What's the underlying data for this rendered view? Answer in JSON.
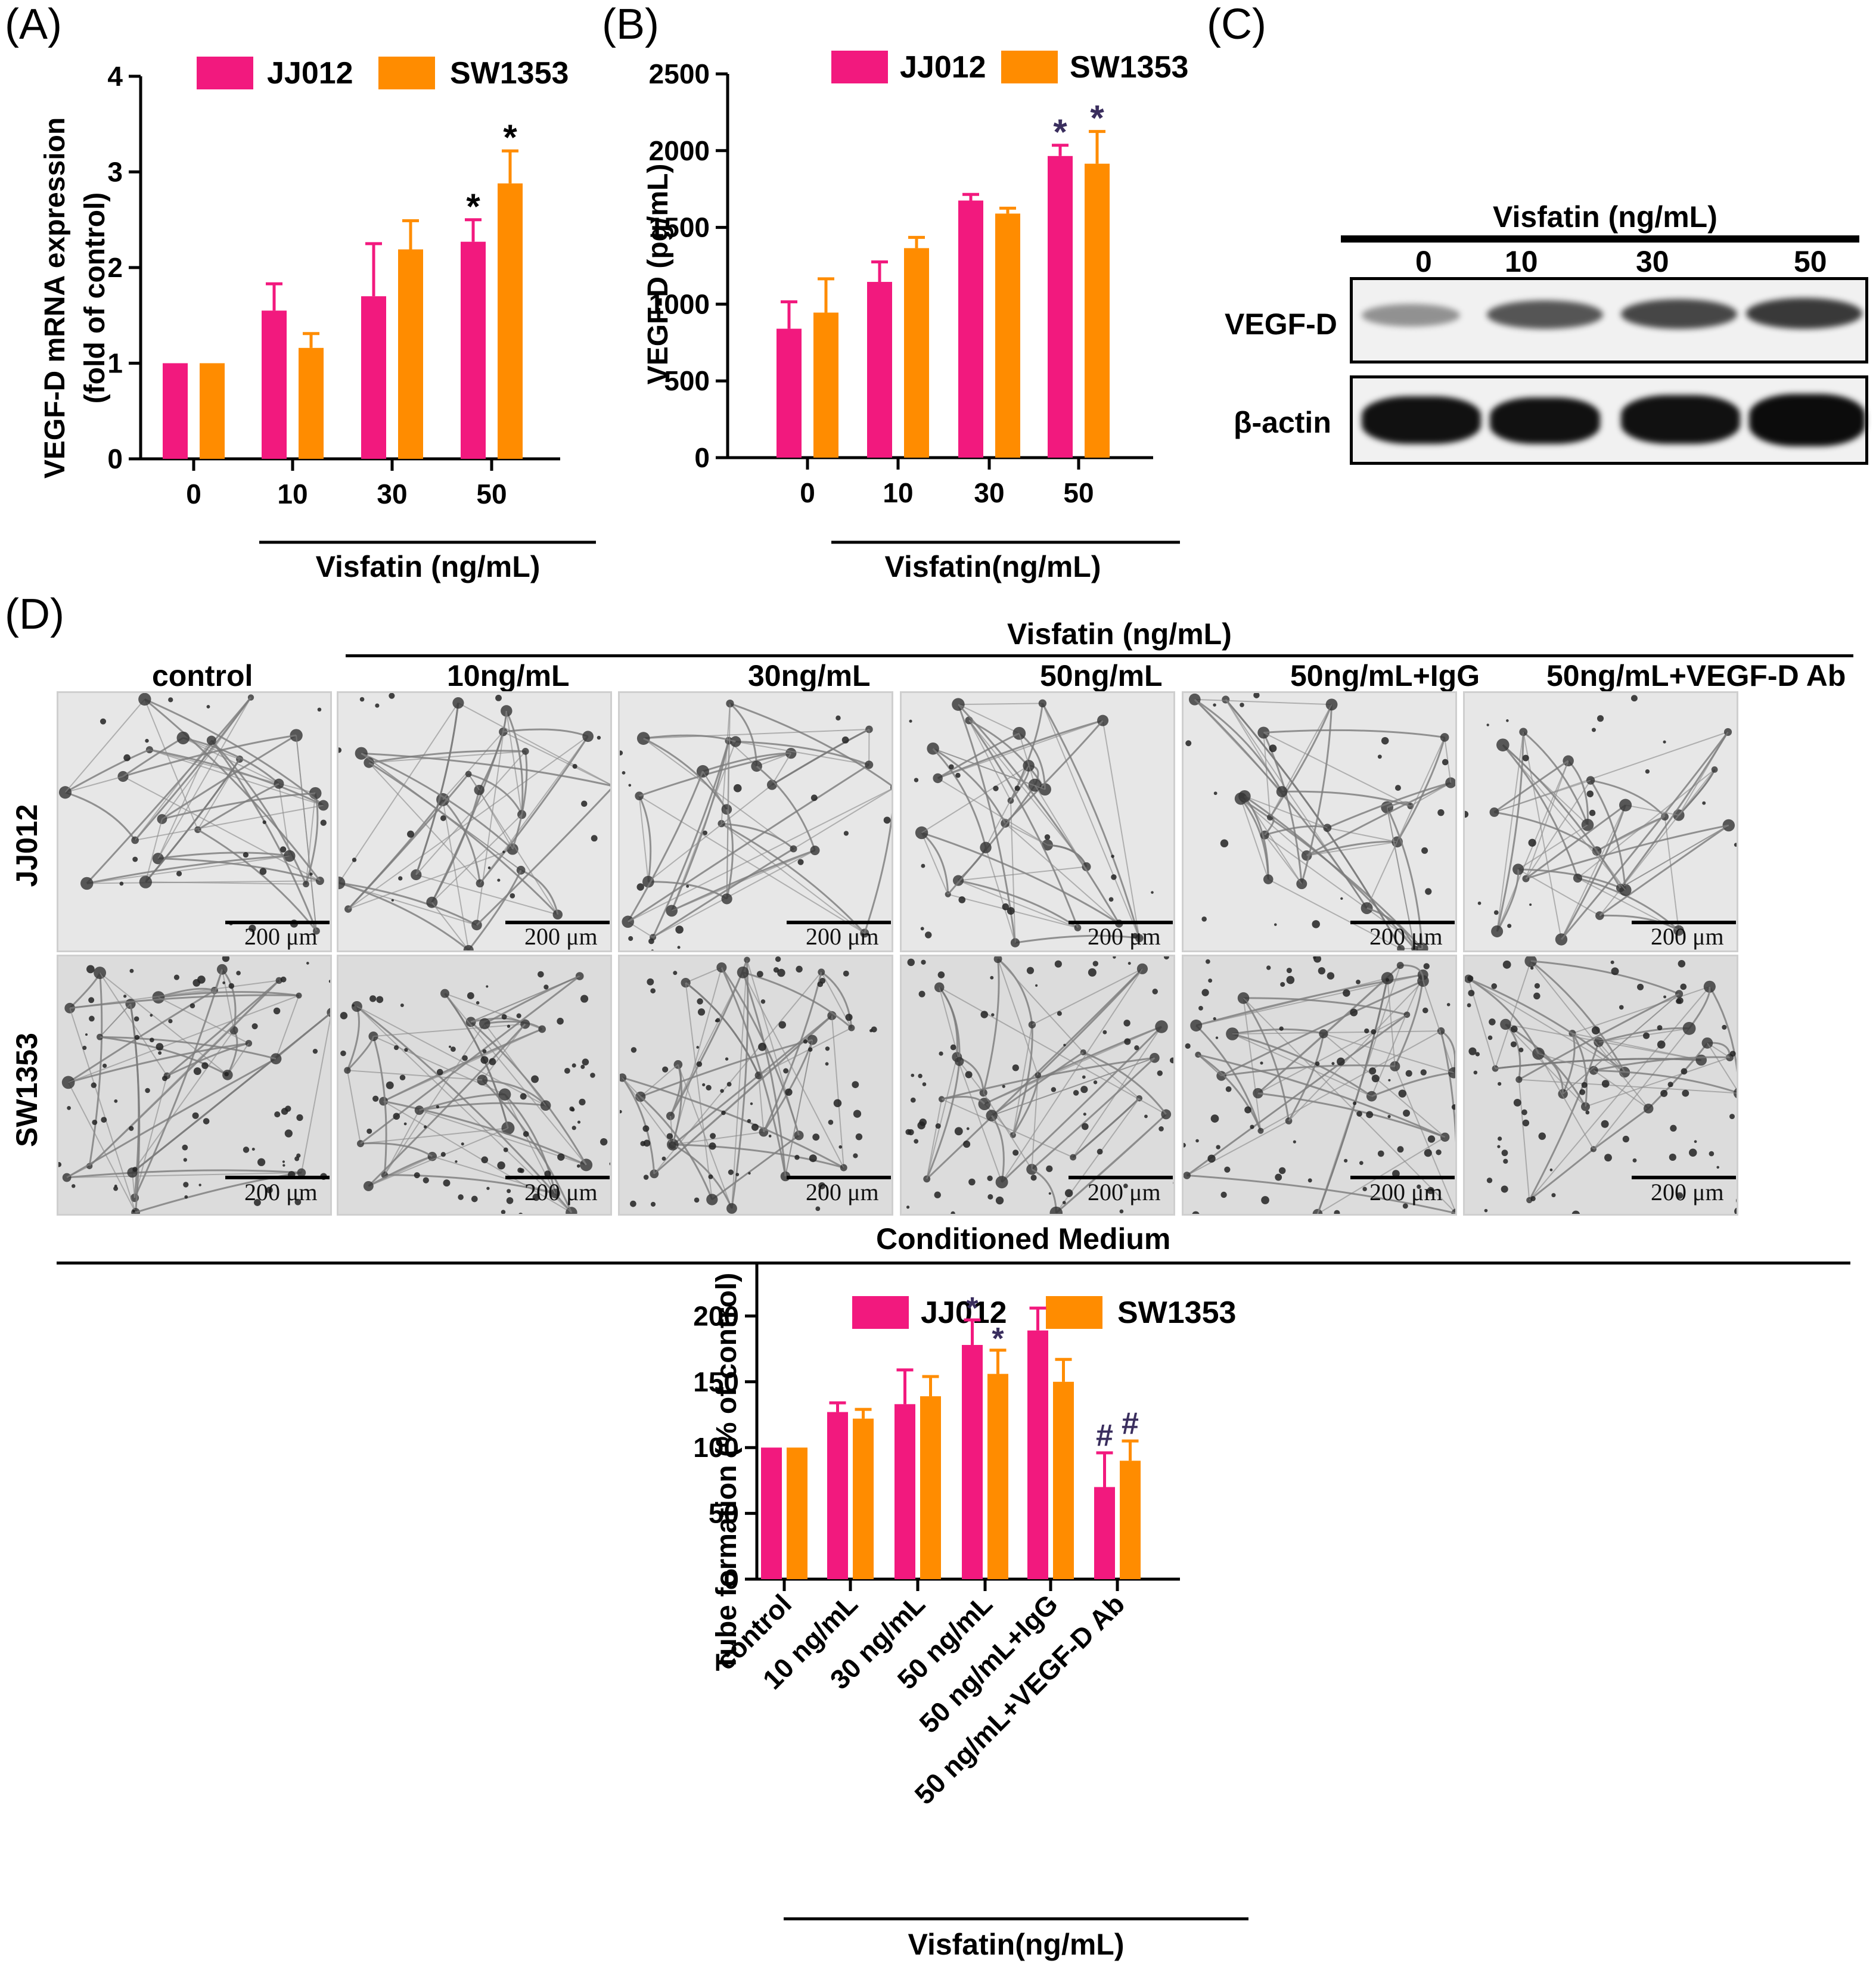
{
  "panel_labels": {
    "a": "(A)",
    "b": "(B)",
    "c": "(C)",
    "d": "(D)"
  },
  "colors": {
    "jj012": "#f2197e",
    "sw1353": "#ff8c00",
    "annot_a": "#000000",
    "annot_b": "#3a2e5e"
  },
  "chart_data": [
    {
      "id": "A",
      "type": "bar",
      "ylabel_line1": "VEGF-D mRNA expression",
      "ylabel_line2": "(fold of control)",
      "xlabel": "Visfatin (ng/mL)",
      "categories": [
        "0",
        "10",
        "30",
        "50"
      ],
      "ylim": [
        0,
        4
      ],
      "yticks": [
        "0",
        "1",
        "2",
        "3",
        "4"
      ],
      "legend_position": "top",
      "series": [
        {
          "name": "JJ012",
          "values": [
            1.0,
            1.55,
            1.7,
            2.27
          ],
          "errors": [
            0,
            0.28,
            0.55,
            0.23
          ],
          "annotations": [
            "",
            "",
            "",
            "*"
          ]
        },
        {
          "name": "SW1353",
          "values": [
            1.0,
            1.16,
            2.19,
            2.88
          ],
          "errors": [
            0,
            0.15,
            0.3,
            0.34
          ],
          "annotations": [
            "",
            "",
            "",
            "*"
          ]
        }
      ]
    },
    {
      "id": "B",
      "type": "bar",
      "ylabel": "VEGF-D (pg/mL)",
      "xlabel": "Visfatin(ng/mL)",
      "categories": [
        "0",
        "10",
        "30",
        "50"
      ],
      "ylim": [
        0,
        2500
      ],
      "yticks": [
        "0",
        "500",
        "1000",
        "1500",
        "2000",
        "2500"
      ],
      "legend_position": "top",
      "series": [
        {
          "name": "JJ012",
          "values": [
            840,
            1145,
            1675,
            1965
          ],
          "errors": [
            175,
            130,
            40,
            70
          ],
          "annotations": [
            "",
            "",
            "",
            "*"
          ]
        },
        {
          "name": "SW1353",
          "values": [
            945,
            1365,
            1590,
            1915
          ],
          "errors": [
            220,
            70,
            35,
            210
          ],
          "annotations": [
            "",
            "",
            "",
            "*"
          ]
        }
      ]
    },
    {
      "id": "D",
      "type": "bar",
      "ylabel": "Tube formation (% of control)",
      "xlabel": "Visfatin(ng/mL)",
      "categories": [
        "control",
        "10 ng/mL",
        "30 ng/mL",
        "50 ng/mL",
        "50 ng/mL+IgG",
        "50 ng/mL+VEGF-D Ab"
      ],
      "ylim": [
        0,
        250
      ],
      "yticks": [
        "0",
        "50",
        "100",
        "150",
        "200",
        "250"
      ],
      "legend_position": "top",
      "series": [
        {
          "name": "JJ012",
          "values": [
            100,
            127,
            133,
            178,
            189,
            70
          ],
          "errors": [
            0,
            7,
            26,
            19,
            17,
            26
          ],
          "annotations": [
            "",
            "",
            "",
            "*",
            "",
            "#"
          ]
        },
        {
          "name": "SW1353",
          "values": [
            100,
            122,
            139,
            156,
            150,
            90
          ],
          "errors": [
            0,
            7,
            15,
            18,
            17,
            15
          ],
          "annotations": [
            "",
            "",
            "",
            "*",
            "",
            "#"
          ]
        }
      ]
    }
  ],
  "blot": {
    "header": "Visfatin (ng/mL)",
    "lanes": [
      "0",
      "10",
      "30",
      "50"
    ],
    "rows": [
      "VEGF-D",
      "β-actin"
    ]
  },
  "microscopy": {
    "header": "Visfatin (ng/mL)",
    "columns": [
      "control",
      "10ng/mL",
      "30ng/mL",
      "50ng/mL",
      "50ng/mL+IgG",
      "50ng/mL+VEGF-D Ab"
    ],
    "rows": [
      "JJ012",
      "SW1353"
    ],
    "scale_label": "200 μm",
    "footer": "Conditioned Medium"
  }
}
